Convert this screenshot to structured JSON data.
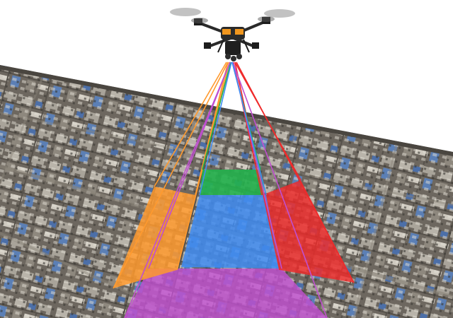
{
  "scene": {
    "subject": "drone-oblique-aerial-survey",
    "camera_footprints": [
      {
        "view": "nadir",
        "color": "#3f8cf2"
      },
      {
        "view": "forward",
        "color": "#22b14c"
      },
      {
        "view": "left",
        "color": "#ff9a2e"
      },
      {
        "view": "right",
        "color": "#ef2a2a"
      },
      {
        "view": "backward",
        "color": "#c04fd0"
      }
    ],
    "colors": {
      "sky": "#ffffff",
      "ground": "#6f6a62",
      "ground_edge": "#4a4640",
      "drone_body": "#2a2a2a",
      "drone_accent": "#f0961e"
    }
  }
}
